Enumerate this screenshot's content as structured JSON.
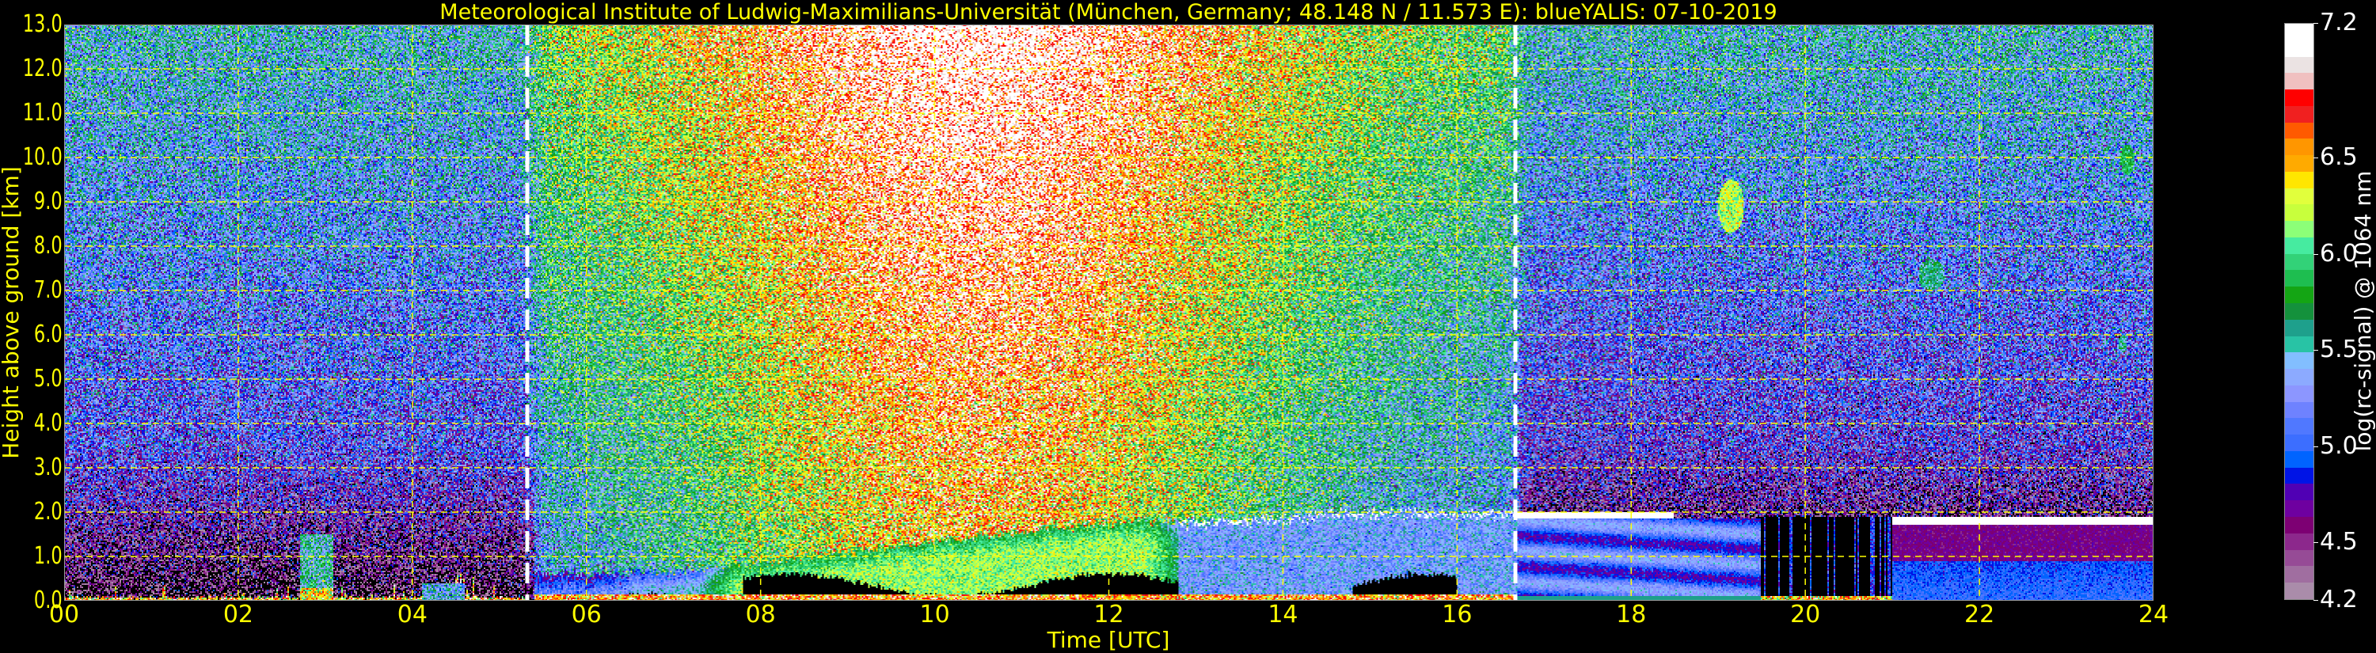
{
  "chart_data": {
    "type": "heatmap",
    "title": "Meteorological Institute of Ludwig-Maximilians-Universität (München, Germany; 48.148 N / 11.573 E):    blueYALIS: 07-10-2019",
    "xlabel": "Time [UTC]",
    "ylabel": "Height above ground [km]",
    "xlim": [
      0,
      24
    ],
    "ylim": [
      0,
      13
    ],
    "x_ticks": [
      "00",
      "02",
      "04",
      "06",
      "08",
      "10",
      "12",
      "14",
      "16",
      "18",
      "20",
      "22",
      "24"
    ],
    "x_tick_values": [
      0,
      2,
      4,
      6,
      8,
      10,
      12,
      14,
      16,
      18,
      20,
      22,
      24
    ],
    "y_ticks": [
      "0.0",
      "1.0",
      "2.0",
      "3.0",
      "4.0",
      "5.0",
      "6.0",
      "7.0",
      "8.0",
      "9.0",
      "10.0",
      "11.0",
      "12.0",
      "13.0"
    ],
    "y_tick_values": [
      0,
      1,
      2,
      3,
      4,
      5,
      6,
      7,
      8,
      9,
      10,
      11,
      12,
      13
    ],
    "grid": true,
    "grid_color": "#ffff00",
    "annotations": [
      {
        "label": "sunrise",
        "x": 5.32
      },
      {
        "label": "sunset",
        "x": 16.67
      }
    ],
    "colorbar": {
      "label": "log(rc-signal) @ 1064 nm",
      "range": [
        4.2,
        7.2
      ],
      "ticks": [
        "4.2",
        "4.5",
        "5.0",
        "5.5",
        "6.0",
        "6.5",
        "7.2"
      ],
      "tick_values": [
        4.2,
        4.5,
        5.0,
        5.5,
        6.0,
        6.5,
        7.2
      ],
      "colors_low_to_high": [
        "#aa8caa",
        "#a06ea0",
        "#964b96",
        "#8c288c",
        "#7d0073",
        "#6e00a0",
        "#5000b4",
        "#0014e6",
        "#0064ff",
        "#3c6eff",
        "#5078ff",
        "#6e82ff",
        "#8c96ff",
        "#8caaff",
        "#82beff",
        "#28c3a5",
        "#1ea08c",
        "#14913c",
        "#14a514",
        "#1ebe50",
        "#32d278",
        "#46eba0",
        "#8cff78",
        "#c8ff3c",
        "#e1ff3c",
        "#ffe600",
        "#ffaa00",
        "#ff9600",
        "#ff5a00",
        "#f02020",
        "#ff0000",
        "#f0c0c0",
        "#ebe3e3",
        "#ffffff",
        "#ffffff"
      ],
      "below_range_color": "#000000"
    },
    "features": [
      {
        "name": "nighttime surface layer",
        "x_range": [
          0,
          5.3
        ],
        "height_km": [
          0,
          0.3
        ]
      },
      {
        "name": "aerosol plume",
        "x_range": [
          2.7,
          3.1
        ],
        "height_km": [
          0,
          1.6
        ]
      },
      {
        "name": "daytime boundary layer",
        "x_range": [
          5.4,
          16.7
        ],
        "height_km": [
          0,
          2.0
        ]
      },
      {
        "name": "boundary layer top cloud",
        "x_range": [
          16.0,
          18.5
        ],
        "height_km": [
          1.8,
          2.0
        ]
      },
      {
        "name": "low cloud top",
        "x_range": [
          21.0,
          24.0
        ],
        "height_km": [
          1.7,
          1.9
        ]
      },
      {
        "name": "cirrus",
        "x_range": [
          19.0,
          19.3
        ],
        "height_km": [
          8.3,
          9.6
        ]
      },
      {
        "name": "cirrus",
        "x_range": [
          21.3,
          21.6
        ],
        "height_km": [
          7.0,
          7.7
        ]
      },
      {
        "name": "cirrus",
        "x_range": [
          23.6,
          23.8
        ],
        "height_km": [
          9.6,
          10.3
        ]
      },
      {
        "name": "cirrus",
        "x_range": [
          23.6,
          23.7
        ],
        "height_km": [
          5.6,
          6.0
        ]
      }
    ]
  }
}
